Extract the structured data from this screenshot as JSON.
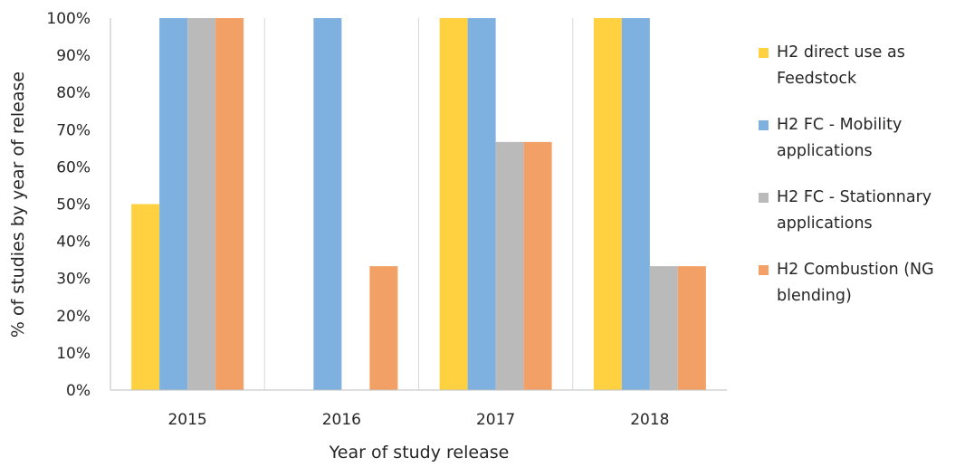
{
  "chart_data": {
    "type": "bar",
    "categories": [
      "2015",
      "2016",
      "2017",
      "2018"
    ],
    "series": [
      {
        "name": "H2 direct use as Feedstock",
        "color": "#FFD03F",
        "values": [
          50,
          0,
          100,
          100
        ]
      },
      {
        "name": "H2 FC - Mobility applications",
        "color": "#7EB1DF",
        "values": [
          100,
          100,
          100,
          100
        ]
      },
      {
        "name": "H2 FC - Stationnary applications",
        "color": "#BABABA",
        "values": [
          100,
          0,
          66.7,
          33.3
        ]
      },
      {
        "name": "H2 Combustion (NG blending)",
        "color": "#F2A065",
        "values": [
          100,
          33.3,
          66.7,
          33.3
        ]
      }
    ],
    "xlabel": "Year of study release",
    "ylabel": "% of studies by year of release",
    "ylim": [
      0,
      100
    ],
    "yticks": [
      "0%",
      "10%",
      "20%",
      "30%",
      "40%",
      "50%",
      "60%",
      "70%",
      "80%",
      "90%",
      "100%"
    ],
    "grid": "vertical category separators",
    "legend_position": "right"
  }
}
